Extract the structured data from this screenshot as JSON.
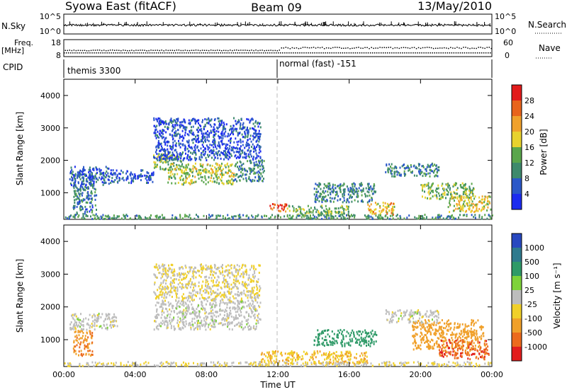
{
  "header": {
    "station": "Syowa East (fitACF)",
    "beam": "Beam 09",
    "date": "13/May/2010"
  },
  "sky_panel": {
    "left_label": "N.Sky",
    "left_ticks": [
      "10^5",
      "10^0"
    ],
    "right_ticks": [
      "10^5",
      "10^0"
    ],
    "right_label": "N.Search"
  },
  "freq_panel": {
    "left_label_1": "Freq.",
    "left_label_2": "[MHz]",
    "left_ticks": [
      "18",
      "8"
    ],
    "right_ticks": [
      "60",
      "0"
    ],
    "right_label": "Nave"
  },
  "cpid_panel": {
    "label": "CPID",
    "segment_1": "themis 3300",
    "segment_2": "normal (fast) -151"
  },
  "axes": {
    "ylabel": "Slant Range [km]",
    "y_ticks": [
      "1000",
      "2000",
      "3000",
      "4000"
    ],
    "x_ticks": [
      "00:00",
      "04:00",
      "08:00",
      "12:00",
      "16:00",
      "20:00",
      "00:00"
    ],
    "xlabel": "Time UT"
  },
  "colorbars": {
    "power": {
      "label": "Power [dB]",
      "ticks": [
        "4",
        "8",
        "12",
        "16",
        "20",
        "24",
        "28"
      ],
      "colors": [
        "#1c2cf0",
        "#2b58c8",
        "#3e8a6c",
        "#5aa64c",
        "#e8d22e",
        "#f0a12c",
        "#e8641c",
        "#e21b1b"
      ]
    },
    "velocity": {
      "label": "Velocity [m s⁻¹]",
      "ticks": [
        "1000",
        "500",
        "100",
        "25",
        "-25",
        "-100",
        "-500",
        "-1000"
      ],
      "colors": [
        "#2848c0",
        "#2f7a8e",
        "#2f9a68",
        "#7ed23a",
        "#bdbdbd",
        "#f0d02a",
        "#f0a02a",
        "#ec6a1c",
        "#e21d1d"
      ]
    }
  },
  "chart_data": {
    "type": "heatmap",
    "x_range_hours": [
      0,
      24
    ],
    "y_range_km": [
      180,
      4500
    ],
    "mode_change_hour": 12,
    "power_clusters": [
      {
        "t0": 0.5,
        "t1": 1.8,
        "r0": 300,
        "r1": 1600,
        "p": 8
      },
      {
        "t0": 0.3,
        "t1": 2.5,
        "r0": 1200,
        "r1": 1800,
        "p": 6
      },
      {
        "t0": 2.5,
        "t1": 5.0,
        "r0": 1300,
        "r1": 1700,
        "p": 6
      },
      {
        "t0": 5.0,
        "t1": 6.6,
        "r0": 1700,
        "r1": 2200,
        "p": 14
      },
      {
        "t0": 5.8,
        "t1": 9.5,
        "r0": 1250,
        "r1": 1900,
        "p": 16
      },
      {
        "t0": 9.5,
        "t1": 11.2,
        "r0": 1350,
        "r1": 2000,
        "p": 10
      },
      {
        "t0": 5.0,
        "t1": 11.0,
        "r0": 2000,
        "r1": 3300,
        "p": 5
      },
      {
        "t0": 11.5,
        "t1": 12.5,
        "r0": 400,
        "r1": 650,
        "p": 26
      },
      {
        "t0": 12.5,
        "t1": 16.0,
        "r0": 280,
        "r1": 600,
        "p": 14
      },
      {
        "t0": 14.0,
        "t1": 17.5,
        "r0": 700,
        "r1": 1300,
        "p": 9
      },
      {
        "t0": 17.0,
        "t1": 18.5,
        "r0": 300,
        "r1": 700,
        "p": 20
      },
      {
        "t0": 18.0,
        "t1": 21.0,
        "r0": 1500,
        "r1": 1900,
        "p": 10
      },
      {
        "t0": 20.0,
        "t1": 23.0,
        "r0": 800,
        "r1": 1300,
        "p": 14
      },
      {
        "t0": 21.5,
        "t1": 23.9,
        "r0": 400,
        "r1": 900,
        "p": 18
      },
      {
        "t0": 0.0,
        "t1": 24.0,
        "r0": 190,
        "r1": 320,
        "p": 11
      }
    ],
    "velocity_clusters": [
      {
        "t0": 0.5,
        "t1": 1.6,
        "r0": 500,
        "r1": 1300,
        "v": -500
      },
      {
        "t0": 0.3,
        "t1": 3.0,
        "r0": 1300,
        "r1": 1800,
        "v": 0
      },
      {
        "t0": 5.0,
        "t1": 11.0,
        "r0": 1300,
        "r1": 2200,
        "v": 0
      },
      {
        "t0": 5.0,
        "t1": 11.0,
        "r0": 2200,
        "r1": 3300,
        "v": -25
      },
      {
        "t0": 11.0,
        "t1": 17.0,
        "r0": 250,
        "r1": 650,
        "v": -100
      },
      {
        "t0": 14.0,
        "t1": 17.5,
        "r0": 800,
        "r1": 1300,
        "v": 300
      },
      {
        "t0": 18.0,
        "t1": 21.0,
        "r0": 1500,
        "r1": 1900,
        "v": 0
      },
      {
        "t0": 19.5,
        "t1": 23.5,
        "r0": 700,
        "r1": 1600,
        "v": -300
      },
      {
        "t0": 21.0,
        "t1": 23.8,
        "r0": 400,
        "r1": 1000,
        "v": -800
      },
      {
        "t0": 0.0,
        "t1": 24.0,
        "r0": 190,
        "r1": 320,
        "v": -25
      }
    ]
  }
}
